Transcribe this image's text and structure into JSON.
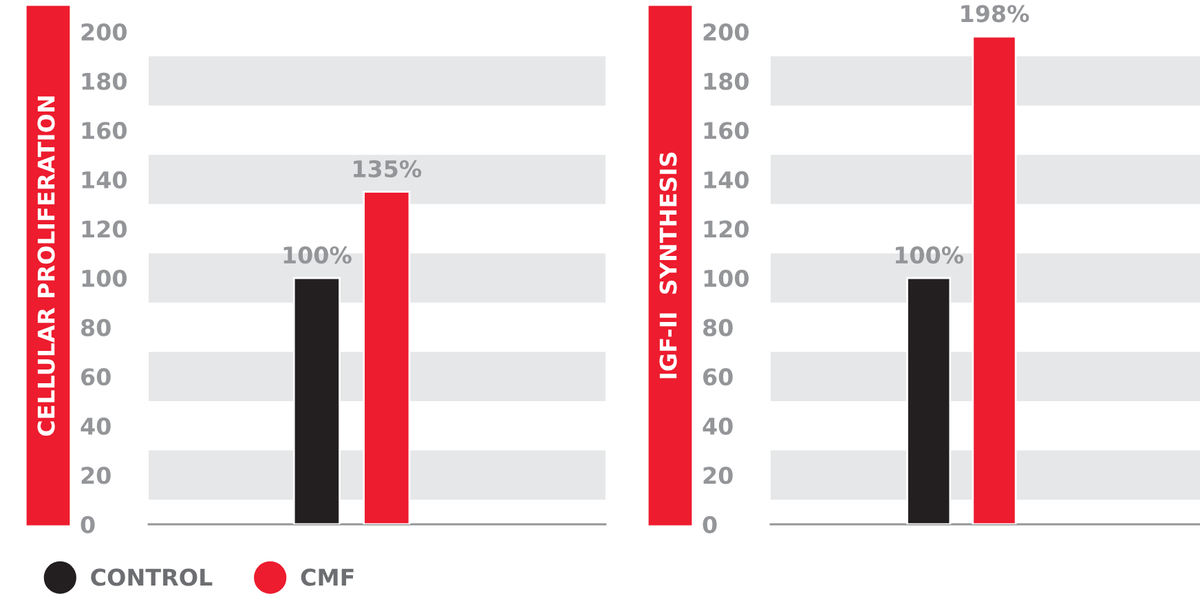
{
  "chart_data": [
    {
      "type": "bar",
      "ylabel": "CELLULAR PROLIFERATION",
      "categories": [
        null
      ],
      "series": [
        {
          "name": "CONTROL",
          "color": "#231f20",
          "values": [
            100
          ],
          "value_labels": [
            "100%"
          ]
        },
        {
          "name": "CMF",
          "color": "#ed1c2e",
          "values": [
            135
          ],
          "value_labels": [
            "135%"
          ]
        }
      ],
      "ylim": [
        0,
        200
      ],
      "yticks": [
        0,
        20,
        40,
        60,
        80,
        100,
        120,
        140,
        160,
        180,
        200
      ],
      "bands": [
        {
          "axis": "y",
          "from": 10,
          "to": 30,
          "color": "#e6e7e8"
        },
        {
          "axis": "y",
          "from": 50,
          "to": 70,
          "color": "#e6e7e8"
        },
        {
          "axis": "y",
          "from": 90,
          "to": 110,
          "color": "#e6e7e8"
        },
        {
          "axis": "y",
          "from": 130,
          "to": 150,
          "color": "#e6e7e8"
        },
        {
          "axis": "y",
          "from": 170,
          "to": 190,
          "color": "#e6e7e8"
        }
      ],
      "legend": "bottom left"
    },
    {
      "type": "bar",
      "ylabel": "IGF-II  SYNTHESIS",
      "categories": [
        null
      ],
      "series": [
        {
          "color": "#231f20",
          "values": [
            100
          ],
          "value_labels": [
            "100%"
          ]
        },
        {
          "color": "#ed1c2e",
          "values": [
            198
          ],
          "value_labels": [
            "198%"
          ]
        }
      ],
      "ylim": [
        0,
        200
      ],
      "yticks": [
        0,
        20,
        40,
        60,
        80,
        100,
        120,
        140,
        160,
        180,
        200
      ],
      "bands": [
        {
          "axis": "y",
          "from": 10,
          "to": 30,
          "color": "#e6e7e8"
        },
        {
          "axis": "y",
          "from": 50,
          "to": 70,
          "color": "#e6e7e8"
        },
        {
          "axis": "y",
          "from": 90,
          "to": 110,
          "color": "#e6e7e8"
        },
        {
          "axis": "y",
          "from": 130,
          "to": 150,
          "color": "#e6e7e8"
        },
        {
          "axis": "y",
          "from": 170,
          "to": 190,
          "color": "#e6e7e8"
        }
      ]
    }
  ]
}
